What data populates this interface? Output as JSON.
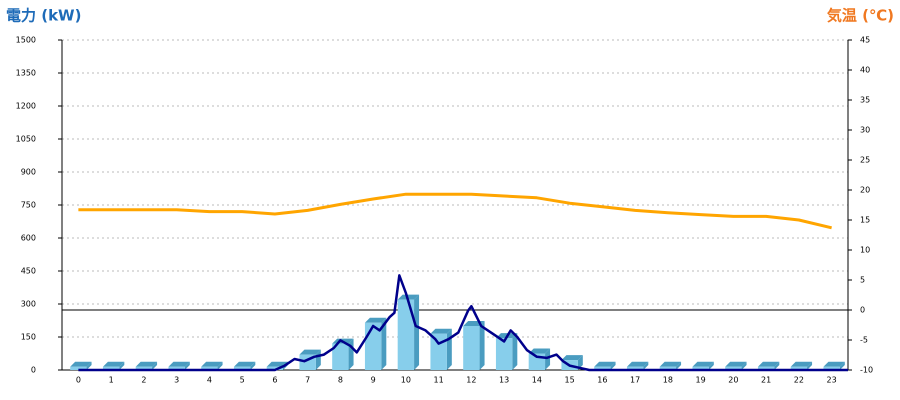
{
  "chart_data": {
    "type": "bar",
    "title": "電力 (kW)",
    "y2_title": "気温 (℃)",
    "categories": [
      "0",
      "1",
      "2",
      "3",
      "4",
      "5",
      "6",
      "7",
      "8",
      "9",
      "10",
      "11",
      "12",
      "13",
      "14",
      "15",
      "16",
      "17",
      "18",
      "19",
      "20",
      "21",
      "22",
      "23"
    ],
    "xlim": [
      -0.5,
      23.5
    ],
    "ylim": [
      0,
      1500
    ],
    "yticks": [
      0,
      150,
      300,
      450,
      600,
      750,
      900,
      1050,
      1200,
      1350,
      1500
    ],
    "y2lim": [
      -10,
      45
    ],
    "y2ticks": [
      -10,
      -5,
      0,
      5,
      10,
      15,
      20,
      25,
      30,
      35,
      40,
      45
    ],
    "grid": true,
    "y2_zero_line": true,
    "series": [
      {
        "type": "bar",
        "color": "#87ceeb",
        "side_color": "#4a9cc0",
        "values": [
          15,
          15,
          15,
          15,
          15,
          15,
          15,
          70,
          120,
          215,
          320,
          165,
          200,
          145,
          75,
          45,
          15,
          15,
          15,
          15,
          15,
          15,
          15,
          15
        ]
      },
      {
        "type": "line",
        "color": "#00008b",
        "x": [
          0,
          6,
          6.3,
          6.6,
          6.9,
          7.2,
          7.5,
          7.8,
          8,
          8.3,
          8.5,
          8.8,
          9,
          9.2,
          9.5,
          9.65,
          9.8,
          10,
          10.1,
          10.3,
          10.6,
          10.9,
          11,
          11.3,
          11.6,
          11.9,
          12,
          12.1,
          12.3,
          12.6,
          12.9,
          13,
          13.2,
          13.4,
          13.7,
          14,
          14.3,
          14.6,
          14.8,
          15,
          15.3,
          15.6,
          16,
          23.5
        ],
        "values": [
          0,
          0,
          20,
          50,
          40,
          60,
          70,
          100,
          135,
          110,
          80,
          150,
          200,
          180,
          240,
          260,
          430,
          350,
          300,
          200,
          180,
          140,
          120,
          140,
          170,
          270,
          290,
          260,
          200,
          170,
          140,
          130,
          180,
          150,
          90,
          60,
          55,
          70,
          40,
          20,
          10,
          0,
          0,
          0
        ]
      },
      {
        "type": "line",
        "axis": "y2",
        "color": "#ffa500",
        "values": [
          16.7,
          16.7,
          16.7,
          16.7,
          16.4,
          16.4,
          16.0,
          16.6,
          17.6,
          18.5,
          19.3,
          19.3,
          19.3,
          19.0,
          18.7,
          17.8,
          17.2,
          16.6,
          16.2,
          15.9,
          15.6,
          15.6,
          15.0,
          13.7
        ]
      }
    ],
    "title_color": "#1e6bb8",
    "y2_title_color": "#f07820"
  }
}
